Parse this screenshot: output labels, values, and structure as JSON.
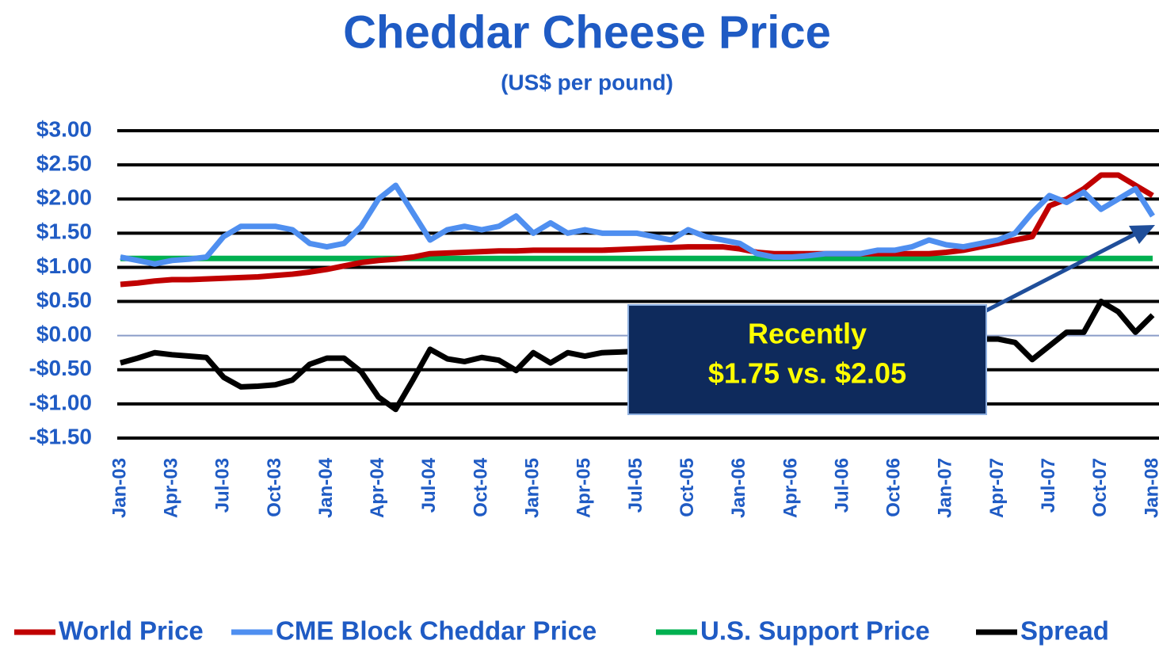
{
  "chart_data": {
    "type": "line",
    "title": "Cheddar Cheese Price",
    "subtitle": "(US$ per pound)",
    "annotation": [
      "Recently",
      "$1.75 vs. $2.05"
    ],
    "categories": [
      "Jan-03",
      null,
      null,
      "Apr-03",
      null,
      null,
      "Jul-03",
      null,
      null,
      "Oct-03",
      null,
      null,
      "Jan-04",
      null,
      null,
      "Apr-04",
      null,
      null,
      "Jul-04",
      null,
      null,
      "Oct-04",
      null,
      null,
      "Jan-05",
      null,
      null,
      "Apr-05",
      null,
      null,
      "Jul-05",
      null,
      null,
      "Oct-05",
      null,
      null,
      "Jan-06",
      null,
      null,
      "Apr-06",
      null,
      null,
      "Jul-06",
      null,
      null,
      "Oct-06",
      null,
      null,
      "Jan-07",
      null,
      null,
      "Apr-07",
      null,
      null,
      "Jul-07",
      null,
      null,
      "Oct-07",
      null,
      null,
      "Jan-08"
    ],
    "series": [
      {
        "name": "World Price",
        "color": "#c00000",
        "values": [
          0.75,
          0.77,
          0.8,
          0.82,
          0.82,
          0.83,
          0.84,
          0.85,
          0.86,
          0.88,
          0.9,
          0.93,
          0.97,
          1.02,
          1.07,
          1.1,
          1.12,
          1.15,
          1.2,
          1.21,
          1.22,
          1.23,
          1.24,
          1.24,
          1.25,
          1.25,
          1.25,
          1.25,
          1.25,
          1.26,
          1.27,
          1.28,
          1.29,
          1.3,
          1.3,
          1.3,
          1.27,
          1.22,
          1.2,
          1.2,
          1.2,
          1.2,
          1.2,
          1.2,
          1.2,
          1.2,
          1.2,
          1.2,
          1.22,
          1.25,
          1.3,
          1.35,
          1.4,
          1.45,
          1.9,
          2.0,
          2.15,
          2.35,
          2.35,
          2.2,
          2.05
        ]
      },
      {
        "name": "CME Block Cheddar Price",
        "color": "#4f8ff0",
        "values": [
          1.15,
          1.1,
          1.05,
          1.1,
          1.12,
          1.15,
          1.45,
          1.6,
          1.6,
          1.6,
          1.55,
          1.35,
          1.3,
          1.35,
          1.6,
          2.0,
          2.2,
          1.8,
          1.4,
          1.55,
          1.6,
          1.55,
          1.6,
          1.75,
          1.5,
          1.65,
          1.5,
          1.55,
          1.5,
          1.5,
          1.5,
          1.45,
          1.4,
          1.55,
          1.45,
          1.4,
          1.35,
          1.2,
          1.15,
          1.15,
          1.17,
          1.2,
          1.2,
          1.2,
          1.25,
          1.25,
          1.3,
          1.4,
          1.33,
          1.3,
          1.35,
          1.4,
          1.5,
          1.8,
          2.05,
          1.95,
          2.1,
          1.85,
          2.0,
          2.15,
          1.75
        ]
      },
      {
        "name": "U.S. Support Price",
        "color": "#00b050",
        "values": [
          1.13,
          1.13,
          1.13,
          1.13,
          1.13,
          1.13,
          1.13,
          1.13,
          1.13,
          1.13,
          1.13,
          1.13,
          1.13,
          1.13,
          1.13,
          1.13,
          1.13,
          1.13,
          1.13,
          1.13,
          1.13,
          1.13,
          1.13,
          1.13,
          1.13,
          1.13,
          1.13,
          1.13,
          1.13,
          1.13,
          1.13,
          1.13,
          1.13,
          1.13,
          1.13,
          1.13,
          1.13,
          1.13,
          1.13,
          1.13,
          1.13,
          1.13,
          1.13,
          1.13,
          1.13,
          1.13,
          1.13,
          1.13,
          1.13,
          1.13,
          1.13,
          1.13,
          1.13,
          1.13,
          1.13,
          1.13,
          1.13,
          1.13,
          1.13,
          1.13,
          1.13
        ]
      },
      {
        "name": "Spread",
        "color": "#000000",
        "values": [
          -0.4,
          -0.33,
          -0.25,
          -0.28,
          -0.3,
          -0.32,
          -0.61,
          -0.75,
          -0.74,
          -0.72,
          -0.65,
          -0.42,
          -0.33,
          -0.33,
          -0.53,
          -0.9,
          -1.08,
          -0.65,
          -0.2,
          -0.34,
          -0.38,
          -0.32,
          -0.36,
          -0.51,
          -0.25,
          -0.4,
          -0.25,
          -0.3,
          -0.25,
          -0.24,
          -0.23,
          -0.17,
          -0.11,
          -0.25,
          -0.15,
          -0.1,
          -0.08,
          0.02,
          0.05,
          0.05,
          0.03,
          0,
          0,
          0,
          -0.05,
          -0.05,
          -0.1,
          -0.2,
          -0.11,
          -0.05,
          -0.05,
          -0.05,
          -0.1,
          -0.35,
          -0.15,
          0.05,
          0.05,
          0.5,
          0.35,
          0.05,
          0.3
        ]
      }
    ],
    "ylim": [
      -1.5,
      3.0
    ],
    "yticks": [
      {
        "value": -1.5,
        "label": "-$1.50"
      },
      {
        "value": -1.0,
        "label": "-$1.00"
      },
      {
        "value": -0.5,
        "label": "-$0.50"
      },
      {
        "value": 0,
        "label": "$0.00"
      },
      {
        "value": 0.5,
        "label": "$0.50"
      },
      {
        "value": 1.0,
        "label": "$1.00"
      },
      {
        "value": 1.5,
        "label": "$1.50"
      },
      {
        "value": 2.0,
        "label": "$2.00"
      },
      {
        "value": 2.5,
        "label": "$2.50"
      },
      {
        "value": 3.0,
        "label": "$3.00"
      }
    ],
    "grid": true,
    "legend": "bottom"
  }
}
